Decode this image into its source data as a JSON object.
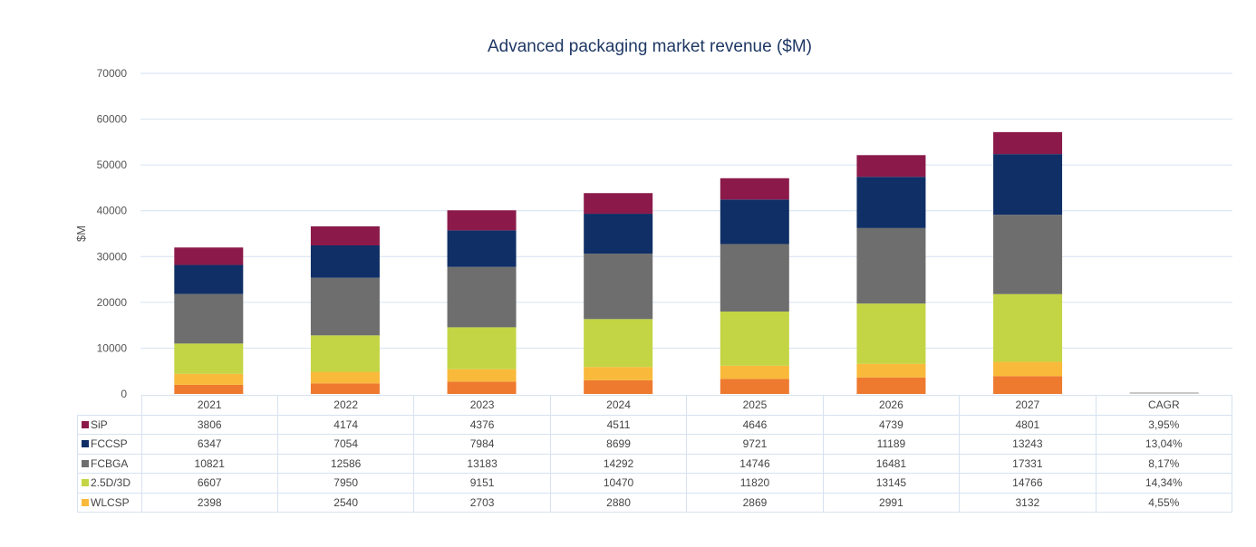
{
  "chart_data": {
    "type": "bar",
    "stacked": true,
    "title": "Advanced packaging market revenue ($M)",
    "xlabel": "",
    "ylabel": "$M",
    "ylim": [
      0,
      70000
    ],
    "yticks": [
      "0",
      "10000",
      "20000",
      "30000",
      "40000",
      "50000",
      "60000",
      "70000"
    ],
    "grid": true,
    "categories": [
      "2021",
      "2022",
      "2023",
      "2024",
      "2025",
      "2026",
      "2027"
    ],
    "table_extra_header": "CAGR",
    "series": [
      {
        "name": "",
        "color": "#ee7a2f",
        "values": [
          2000,
          2300,
          2700,
          3000,
          3300,
          3600,
          3900
        ],
        "in_table": false
      },
      {
        "name": "WLCSP",
        "color": "#f9b93a",
        "values": [
          2398,
          2540,
          2703,
          2880,
          2869,
          2991,
          3132
        ],
        "cagr": "4,55%",
        "in_table": true
      },
      {
        "name": "2.5D/3D",
        "color": "#c3d544",
        "values": [
          6607,
          7950,
          9151,
          10470,
          11820,
          13145,
          14766
        ],
        "cagr": "14,34%",
        "in_table": true
      },
      {
        "name": "FCBGA",
        "color": "#6e6e6e",
        "values": [
          10821,
          12586,
          13183,
          14292,
          14746,
          16481,
          17331
        ],
        "cagr": "8,17%",
        "in_table": true
      },
      {
        "name": "FCCSP",
        "color": "#0f2f66",
        "values": [
          6347,
          7054,
          7984,
          8699,
          9721,
          11189,
          13243
        ],
        "cagr": "13,04%",
        "in_table": true
      },
      {
        "name": "SiP",
        "color": "#8b1a4a",
        "values": [
          3806,
          4174,
          4376,
          4511,
          4646,
          4739,
          4801
        ],
        "cagr": "3,95%",
        "in_table": true
      }
    ],
    "title_color": "#1f3864"
  }
}
